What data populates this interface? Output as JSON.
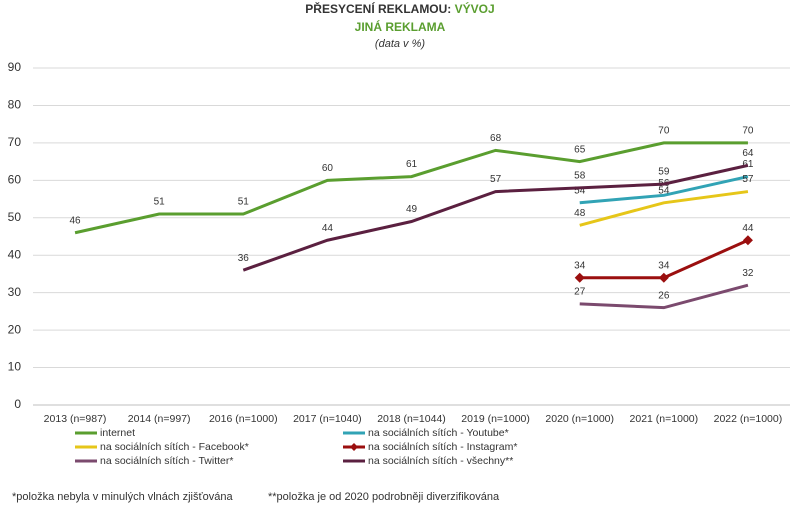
{
  "chart_data": {
    "type": "line",
    "title": "PŘESYCENÍ REKLAMOU:",
    "title_highlight": "VÝVOJ",
    "subtitle": "JINÁ REKLAMA",
    "unit_note": "(data v %)",
    "categories": [
      "2013 (n=987)",
      "2014 (n=997)",
      "2016 (n=1000)",
      "2017 (n=1040)",
      "2018 (n=1044)",
      "2019 (n=1000)",
      "2020 (n=1000)",
      "2021 (n=1000)",
      "2022 (n=1000)"
    ],
    "series": [
      {
        "name": "internet",
        "color": "#5a9e2f",
        "values": [
          46,
          51,
          51,
          60,
          61,
          68,
          65,
          70,
          70
        ]
      },
      {
        "name": "na sociálních sítích - Youtube*",
        "color": "#31a3b5",
        "values": [
          null,
          null,
          null,
          null,
          null,
          null,
          54,
          56,
          61
        ]
      },
      {
        "name": "na sociálních sítích - Facebook*",
        "color": "#e6c619",
        "values": [
          null,
          null,
          null,
          null,
          null,
          null,
          48,
          54,
          57
        ]
      },
      {
        "name": "na sociálních sítích - Instagram*",
        "color": "#9b0f0f",
        "marker": "diamond",
        "values": [
          null,
          null,
          null,
          null,
          null,
          null,
          34,
          34,
          44
        ]
      },
      {
        "name": "na sociálních sítích - Twitter*",
        "color": "#7b4a6e",
        "values": [
          null,
          null,
          null,
          null,
          null,
          null,
          27,
          26,
          32
        ]
      },
      {
        "name": "na sociálních sítích - všechny**",
        "color": "#5b2040",
        "values": [
          null,
          null,
          36,
          44,
          49,
          57,
          58,
          59,
          64
        ]
      }
    ],
    "ylim": [
      0,
      90
    ],
    "yticks": [
      0,
      10,
      20,
      30,
      40,
      50,
      60,
      70,
      80,
      90
    ],
    "grid": true,
    "footnotes": [
      "*položka nebyla v minulých vlnách zjišťována",
      "**položka je od 2020 podrobněji diverzifikována"
    ]
  }
}
